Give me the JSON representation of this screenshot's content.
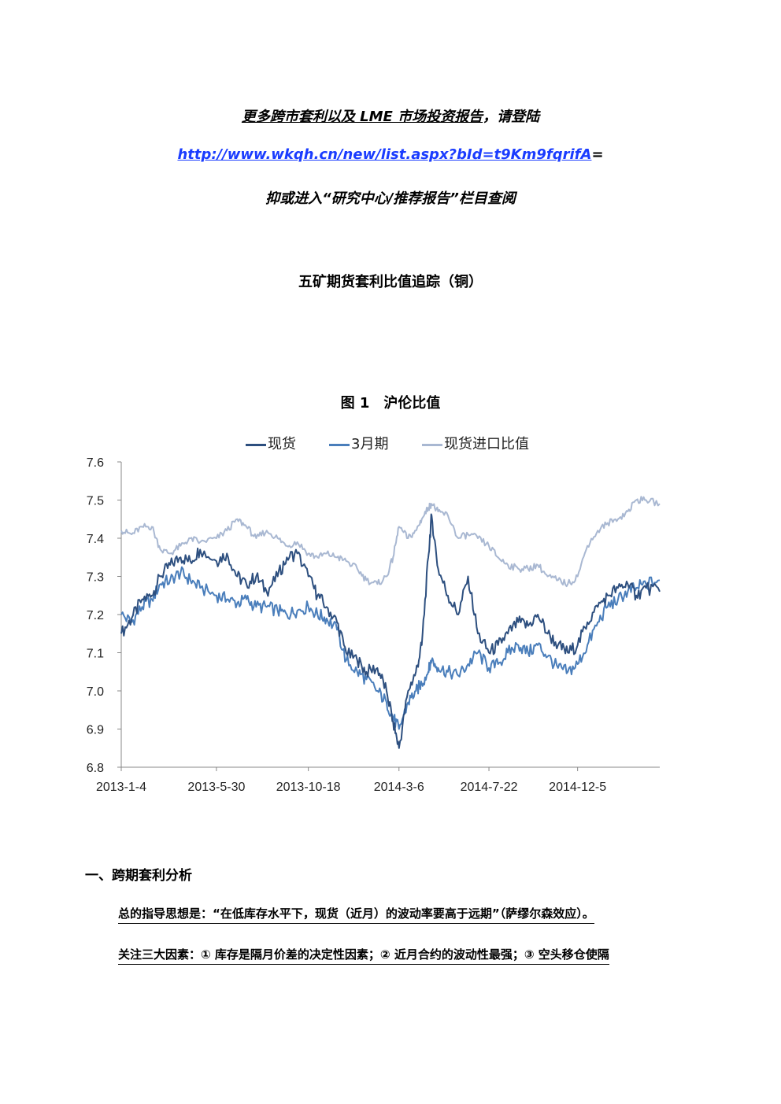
{
  "promo": {
    "line1_prefix": "更多跨市套利以及 LME 市场投资报告",
    "line1_suffix": "，请登陆",
    "url": "http://www.wkqh.cn/new/list.aspx?bId=t9Km9fqrifA",
    "url_suffix": "=",
    "line3": "抑或进入“研究中心/推荐报告”栏目查阅"
  },
  "doc_title": "五矿期货套利比值追踪（铜）",
  "figure_title": "图 1　沪伦比值",
  "chart_data": {
    "type": "line",
    "title": "图 1　沪伦比值",
    "legend_position": "top",
    "x_ticks": [
      "2013-1-4",
      "2013-5-30",
      "2013-10-18",
      "2014-3-6",
      "2014-7-22",
      "2014-12-5"
    ],
    "x_range": [
      "2013-01-04",
      "2015-04-10"
    ],
    "y_ticks": [
      "6.8",
      "6.9",
      "7.0",
      "7.1",
      "7.2",
      "7.3",
      "7.4",
      "7.5",
      "7.6"
    ],
    "ylim": [
      6.8,
      7.6
    ],
    "grid": false,
    "series": [
      {
        "name": "现货",
        "color": "#2d4f7f",
        "points": [
          [
            "2013-01-04",
            7.15
          ],
          [
            "2013-01-20",
            7.19
          ],
          [
            "2013-02-05",
            7.24
          ],
          [
            "2013-02-20",
            7.25
          ],
          [
            "2013-03-05",
            7.3
          ],
          [
            "2013-03-20",
            7.33
          ],
          [
            "2013-04-05",
            7.35
          ],
          [
            "2013-04-20",
            7.34
          ],
          [
            "2013-05-05",
            7.37
          ],
          [
            "2013-05-30",
            7.34
          ],
          [
            "2013-06-15",
            7.36
          ],
          [
            "2013-07-01",
            7.3
          ],
          [
            "2013-07-15",
            7.28
          ],
          [
            "2013-07-30",
            7.3
          ],
          [
            "2013-08-15",
            7.26
          ],
          [
            "2013-09-01",
            7.3
          ],
          [
            "2013-09-15",
            7.35
          ],
          [
            "2013-10-01",
            7.36
          ],
          [
            "2013-10-18",
            7.3
          ],
          [
            "2013-11-01",
            7.25
          ],
          [
            "2013-11-15",
            7.22
          ],
          [
            "2013-12-01",
            7.18
          ],
          [
            "2013-12-15",
            7.1
          ],
          [
            "2014-01-01",
            7.08
          ],
          [
            "2014-01-15",
            7.05
          ],
          [
            "2014-02-01",
            7.06
          ],
          [
            "2014-02-15",
            7.0
          ],
          [
            "2014-02-25",
            6.92
          ],
          [
            "2014-03-06",
            6.85
          ],
          [
            "2014-03-20",
            7.0
          ],
          [
            "2014-04-01",
            7.05
          ],
          [
            "2014-04-10",
            7.12
          ],
          [
            "2014-04-20",
            7.35
          ],
          [
            "2014-04-25",
            7.46
          ],
          [
            "2014-05-05",
            7.32
          ],
          [
            "2014-05-20",
            7.25
          ],
          [
            "2014-06-05",
            7.2
          ],
          [
            "2014-06-20",
            7.3
          ],
          [
            "2014-07-05",
            7.15
          ],
          [
            "2014-07-22",
            7.1
          ],
          [
            "2014-08-05",
            7.12
          ],
          [
            "2014-08-20",
            7.15
          ],
          [
            "2014-09-05",
            7.18
          ],
          [
            "2014-09-20",
            7.17
          ],
          [
            "2014-10-05",
            7.2
          ],
          [
            "2014-10-20",
            7.15
          ],
          [
            "2014-11-05",
            7.12
          ],
          [
            "2014-11-20",
            7.1
          ],
          [
            "2014-12-05",
            7.12
          ],
          [
            "2014-12-20",
            7.18
          ],
          [
            "2015-01-05",
            7.22
          ],
          [
            "2015-01-20",
            7.25
          ],
          [
            "2015-02-05",
            7.27
          ],
          [
            "2015-02-20",
            7.28
          ],
          [
            "2015-03-05",
            7.25
          ],
          [
            "2015-03-20",
            7.27
          ],
          [
            "2015-04-10",
            7.26
          ]
        ]
      },
      {
        "name": "3月期",
        "color": "#4a7ebb",
        "points": [
          [
            "2013-01-04",
            7.2
          ],
          [
            "2013-01-20",
            7.18
          ],
          [
            "2013-02-05",
            7.22
          ],
          [
            "2013-02-20",
            7.24
          ],
          [
            "2013-03-05",
            7.28
          ],
          [
            "2013-03-20",
            7.29
          ],
          [
            "2013-04-05",
            7.31
          ],
          [
            "2013-04-20",
            7.29
          ],
          [
            "2013-05-05",
            7.27
          ],
          [
            "2013-05-30",
            7.25
          ],
          [
            "2013-06-15",
            7.24
          ],
          [
            "2013-07-01",
            7.23
          ],
          [
            "2013-07-15",
            7.24
          ],
          [
            "2013-07-30",
            7.22
          ],
          [
            "2013-08-15",
            7.22
          ],
          [
            "2013-09-01",
            7.21
          ],
          [
            "2013-09-15",
            7.2
          ],
          [
            "2013-10-01",
            7.21
          ],
          [
            "2013-10-18",
            7.22
          ],
          [
            "2013-11-01",
            7.2
          ],
          [
            "2013-11-15",
            7.19
          ],
          [
            "2013-12-01",
            7.16
          ],
          [
            "2013-12-15",
            7.08
          ],
          [
            "2014-01-01",
            7.05
          ],
          [
            "2014-01-15",
            7.03
          ],
          [
            "2014-02-01",
            7.0
          ],
          [
            "2014-02-15",
            6.97
          ],
          [
            "2014-02-25",
            6.93
          ],
          [
            "2014-03-06",
            6.9
          ],
          [
            "2014-03-20",
            6.97
          ],
          [
            "2014-04-01",
            7.0
          ],
          [
            "2014-04-10",
            7.02
          ],
          [
            "2014-04-20",
            7.05
          ],
          [
            "2014-04-25",
            7.08
          ],
          [
            "2014-05-05",
            7.06
          ],
          [
            "2014-05-20",
            7.05
          ],
          [
            "2014-06-05",
            7.04
          ],
          [
            "2014-06-20",
            7.07
          ],
          [
            "2014-07-05",
            7.1
          ],
          [
            "2014-07-22",
            7.06
          ],
          [
            "2014-08-05",
            7.07
          ],
          [
            "2014-08-20",
            7.1
          ],
          [
            "2014-09-05",
            7.12
          ],
          [
            "2014-09-20",
            7.1
          ],
          [
            "2014-10-05",
            7.12
          ],
          [
            "2014-10-20",
            7.09
          ],
          [
            "2014-11-05",
            7.06
          ],
          [
            "2014-11-20",
            7.05
          ],
          [
            "2014-12-05",
            7.07
          ],
          [
            "2014-12-20",
            7.12
          ],
          [
            "2015-01-05",
            7.18
          ],
          [
            "2015-01-20",
            7.22
          ],
          [
            "2015-02-05",
            7.24
          ],
          [
            "2015-02-20",
            7.26
          ],
          [
            "2015-03-05",
            7.27
          ],
          [
            "2015-03-20",
            7.28
          ],
          [
            "2015-04-10",
            7.29
          ]
        ]
      },
      {
        "name": "现货进口比值",
        "color": "#a9b8d2",
        "points": [
          [
            "2013-01-04",
            7.42
          ],
          [
            "2013-01-20",
            7.41
          ],
          [
            "2013-02-05",
            7.43
          ],
          [
            "2013-02-20",
            7.43
          ],
          [
            "2013-03-05",
            7.37
          ],
          [
            "2013-03-20",
            7.36
          ],
          [
            "2013-04-05",
            7.38
          ],
          [
            "2013-04-20",
            7.4
          ],
          [
            "2013-05-05",
            7.39
          ],
          [
            "2013-05-30",
            7.4
          ],
          [
            "2013-06-15",
            7.42
          ],
          [
            "2013-07-01",
            7.45
          ],
          [
            "2013-07-15",
            7.43
          ],
          [
            "2013-07-30",
            7.4
          ],
          [
            "2013-08-15",
            7.42
          ],
          [
            "2013-09-01",
            7.4
          ],
          [
            "2013-09-15",
            7.38
          ],
          [
            "2013-10-01",
            7.39
          ],
          [
            "2013-10-18",
            7.36
          ],
          [
            "2013-11-01",
            7.35
          ],
          [
            "2013-11-15",
            7.36
          ],
          [
            "2013-12-01",
            7.35
          ],
          [
            "2013-12-15",
            7.34
          ],
          [
            "2014-01-01",
            7.32
          ],
          [
            "2014-01-15",
            7.29
          ],
          [
            "2014-02-01",
            7.28
          ],
          [
            "2014-02-15",
            7.3
          ],
          [
            "2014-02-25",
            7.35
          ],
          [
            "2014-03-06",
            7.43
          ],
          [
            "2014-03-20",
            7.4
          ],
          [
            "2014-04-01",
            7.42
          ],
          [
            "2014-04-10",
            7.45
          ],
          [
            "2014-04-20",
            7.48
          ],
          [
            "2014-04-25",
            7.49
          ],
          [
            "2014-05-05",
            7.47
          ],
          [
            "2014-05-20",
            7.46
          ],
          [
            "2014-06-05",
            7.4
          ],
          [
            "2014-06-20",
            7.41
          ],
          [
            "2014-07-05",
            7.4
          ],
          [
            "2014-07-22",
            7.38
          ],
          [
            "2014-08-05",
            7.35
          ],
          [
            "2014-08-20",
            7.33
          ],
          [
            "2014-09-05",
            7.32
          ],
          [
            "2014-09-20",
            7.32
          ],
          [
            "2014-10-05",
            7.33
          ],
          [
            "2014-10-20",
            7.3
          ],
          [
            "2014-11-05",
            7.29
          ],
          [
            "2014-11-20",
            7.28
          ],
          [
            "2014-12-05",
            7.3
          ],
          [
            "2014-12-20",
            7.38
          ],
          [
            "2015-01-05",
            7.42
          ],
          [
            "2015-01-20",
            7.44
          ],
          [
            "2015-02-05",
            7.45
          ],
          [
            "2015-02-20",
            7.47
          ],
          [
            "2015-03-05",
            7.5
          ],
          [
            "2015-03-20",
            7.5
          ],
          [
            "2015-04-10",
            7.49
          ]
        ]
      }
    ]
  },
  "section1": {
    "heading": "一、跨期套利分析",
    "para1": "总的指导思想是：“在低库存水平下，现货（近月）的波动率要高于远期”（萨缪尔森效应）。",
    "para2": "关注三大因素：① 库存是隔月价差的决定性因素；② 近月合约的波动性最强；③ 空头移仓使隔"
  }
}
